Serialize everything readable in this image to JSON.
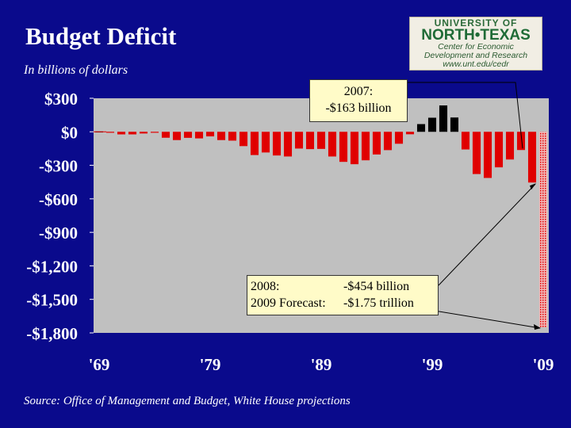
{
  "slide": {
    "title": "Budget Deficit",
    "subtitle": "In billions of dollars",
    "source": "Source:  Office of Management and Budget, White House projections"
  },
  "logo": {
    "line1": "UNIVERSITY OF",
    "line2": "NORTH•TEXAS",
    "line3": "Center for Economic",
    "line4": "Development and Research",
    "line5": "www.unt.edu/cedr"
  },
  "callouts": {
    "c2007_line1": "2007:",
    "c2007_line2": "-$163 billion",
    "c2008_label": "2008:",
    "c2008_value": "-$454 billion",
    "c2009_label": "2009 Forecast:",
    "c2009_value": "-$1.75 trillion"
  },
  "colors": {
    "background": "#0a0a8c",
    "plot_area": "#c0c0c0",
    "deficit": "#e00000",
    "surplus": "#000000",
    "callout_bg": "#fffbc8"
  },
  "chart_data": {
    "type": "bar",
    "title": "Budget Deficit",
    "ylabel": "In billions of dollars",
    "xlabel": "",
    "ylim": [
      -1800,
      300
    ],
    "yticks": [
      300,
      0,
      -300,
      -600,
      -900,
      -1200,
      -1500,
      -1800
    ],
    "ytick_labels": [
      "$300",
      "$0",
      "-$300",
      "-$600",
      "-$900",
      "-$1,200",
      "-$1,500",
      "-$1,800"
    ],
    "x_tick_labels": [
      "'69",
      "'79",
      "'89",
      "'99",
      "'09"
    ],
    "x_tick_years": [
      1969,
      1979,
      1989,
      1999,
      2009
    ],
    "years": [
      1969,
      1970,
      1971,
      1972,
      1973,
      1974,
      1975,
      1976,
      1977,
      1978,
      1979,
      1980,
      1981,
      1982,
      1983,
      1984,
      1985,
      1986,
      1987,
      1988,
      1989,
      1990,
      1991,
      1992,
      1993,
      1994,
      1995,
      1996,
      1997,
      1998,
      1999,
      2000,
      2001,
      2002,
      2003,
      2004,
      2005,
      2006,
      2007,
      2008,
      2009
    ],
    "values": [
      3,
      -3,
      -23,
      -23,
      -15,
      -6,
      -53,
      -74,
      -54,
      -59,
      -41,
      -74,
      -79,
      -128,
      -208,
      -185,
      -212,
      -221,
      -150,
      -155,
      -153,
      -221,
      -269,
      -290,
      -255,
      -203,
      -164,
      -107,
      -22,
      69,
      126,
      236,
      128,
      -158,
      -378,
      -413,
      -318,
      -248,
      -163,
      -454,
      -1750
    ],
    "forecast_years": [
      2009
    ],
    "grid": false,
    "legend": "none"
  }
}
